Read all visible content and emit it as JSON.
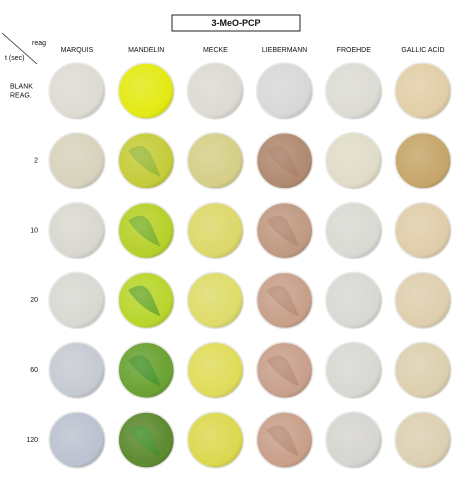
{
  "title": "3-MeO-PCP",
  "corner": {
    "top": "reag",
    "bottom": "t (sec)"
  },
  "columns": [
    "MARQUIS",
    "MANDELIN",
    "MECKE",
    "LIEBERMANN",
    "FROEHDE",
    "GALLIC ACID"
  ],
  "rows": [
    [
      "BLANK",
      "REAG."
    ],
    [
      "2"
    ],
    [
      "10"
    ],
    [
      "20"
    ],
    [
      "60"
    ],
    [
      "120"
    ]
  ]
}
